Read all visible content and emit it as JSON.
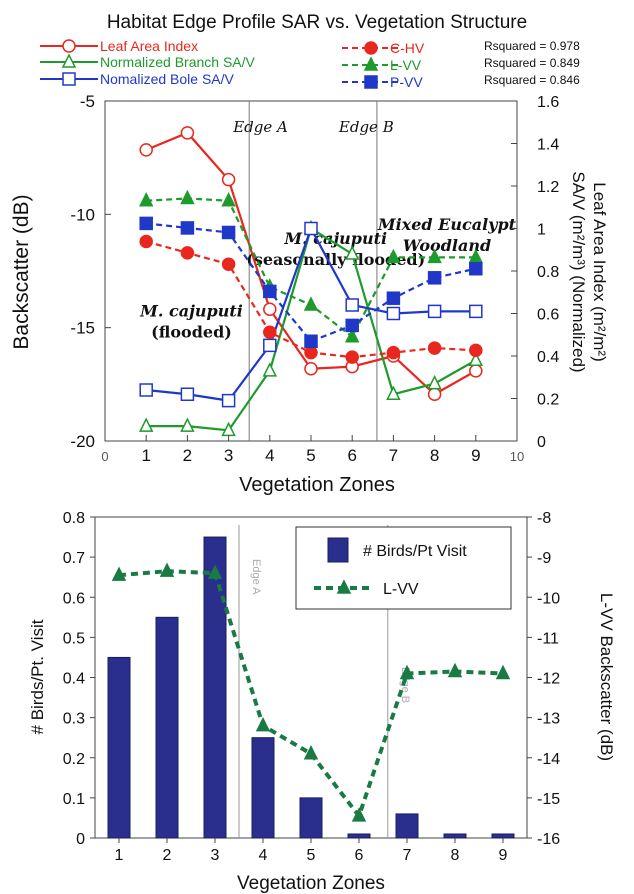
{
  "chart_data": [
    {
      "type": "line",
      "title": "Habitat Edge Profile SAR vs. Vegetation Structure",
      "xlabel": "Vegetation Zones",
      "ylabel_left": "Backscatter (dB)",
      "ylabel_right": "Leaf Area Index (m²/m²) SA/V (m²/m³) (Normalized)",
      "xlim": [
        0,
        10
      ],
      "ylim_left": [
        -20,
        -5
      ],
      "ylim_right": [
        0,
        1.6
      ],
      "x_ticks": [
        "0",
        "1",
        "2",
        "3",
        "4",
        "5",
        "6",
        "7",
        "8",
        "9",
        "10"
      ],
      "y_ticks_left": [
        "-5",
        "-10",
        "-15",
        "-20"
      ],
      "y_ticks_right": [
        "0",
        "0.2",
        "0.4",
        "0.6",
        "0.8",
        "1",
        "1.2",
        "1.4",
        "1.6"
      ],
      "x": [
        1,
        2,
        3,
        4,
        5,
        6,
        7,
        8,
        9
      ],
      "series": [
        {
          "name": "Leaf Area Index",
          "axis": "right",
          "color": "#e8271e",
          "style": "solid",
          "marker": "open-circle",
          "values": [
            1.37,
            1.45,
            1.23,
            0.62,
            0.34,
            0.35,
            0.4,
            0.22,
            0.33
          ]
        },
        {
          "name": "Normalized Branch SA/V",
          "axis": "right",
          "color": "#1f9a2c",
          "style": "solid",
          "marker": "open-triangle",
          "values": [
            0.07,
            0.07,
            0.05,
            0.33,
            1.0,
            0.88,
            0.22,
            0.27,
            0.38
          ]
        },
        {
          "name": "Nomalized Bole SA/V",
          "axis": "right",
          "color": "#2038c8",
          "style": "solid",
          "marker": "open-square",
          "values": [
            0.24,
            0.22,
            0.19,
            0.45,
            1.0,
            0.64,
            0.6,
            0.61,
            0.61
          ]
        },
        {
          "name": "C-HV",
          "axis": "left",
          "color": "#e8271e",
          "style": "dashed",
          "marker": "filled-circle",
          "values": [
            -11.2,
            -11.7,
            -12.2,
            -15.2,
            -16.1,
            -16.3,
            -16.1,
            -15.9,
            -16.0
          ]
        },
        {
          "name": "L-VV",
          "axis": "left",
          "color": "#1f9a2c",
          "style": "dashed",
          "marker": "filled-triangle",
          "values": [
            -9.4,
            -9.3,
            -9.4,
            -13.2,
            -14.0,
            -15.4,
            -11.9,
            -11.9,
            -11.9
          ]
        },
        {
          "name": "P-VV",
          "axis": "left",
          "color": "#2038c8",
          "style": "dashed",
          "marker": "filled-square",
          "values": [
            -10.4,
            -10.6,
            -10.8,
            -13.4,
            -15.6,
            -14.9,
            -13.7,
            -12.8,
            -12.4
          ]
        }
      ],
      "rsquared": [
        "Rsquared = 0.978",
        "Rsquared = 0.849",
        "Rsquared = 0.846"
      ],
      "edges": [
        {
          "label": "Edge A",
          "x": 3.5
        },
        {
          "label": "Edge B",
          "x": 6.6
        }
      ],
      "annotations": [
        {
          "lines": [
            "M. cajuputi",
            "(seasonally flooded)"
          ],
          "x": 5.6,
          "y": -11.3
        },
        {
          "lines": [
            "Mixed Eucalypt",
            "Woodland"
          ],
          "x": 8.3,
          "y": -10.7
        },
        {
          "lines": [
            "M. cajuputi",
            "(flooded)"
          ],
          "x": 2.1,
          "y": -14.5
        }
      ]
    },
    {
      "type": "bar",
      "xlabel": "Vegetation Zones",
      "ylabel_left": "# Birds/Pt. Visit",
      "ylabel_right": "L-VV Backscatter (dB)",
      "categories": [
        "1",
        "2",
        "3",
        "4",
        "5",
        "6",
        "7",
        "8",
        "9"
      ],
      "ylim_left": [
        0,
        0.8
      ],
      "ylim_right": [
        -16,
        -8
      ],
      "y_ticks_left": [
        "0",
        "0.1",
        "0.2",
        "0.3",
        "0.4",
        "0.5",
        "0.6",
        "0.7",
        "0.8"
      ],
      "y_ticks_right": [
        "-8",
        "-9",
        "-10",
        "-11",
        "-12",
        "-13",
        "-14",
        "-15",
        "-16"
      ],
      "series": [
        {
          "name": "# Birds/Pt Visit",
          "axis": "left",
          "color": "#2a2e8c",
          "values": [
            0.45,
            0.55,
            0.75,
            0.25,
            0.1,
            0.01,
            0.06,
            0.01,
            0.01
          ]
        },
        {
          "name": "L-VV",
          "axis": "right",
          "color": "#1a7a44",
          "style": "dashed",
          "marker": "filled-triangle",
          "values": [
            -9.45,
            -9.35,
            -9.4,
            -13.2,
            -13.9,
            -15.45,
            -11.9,
            -11.85,
            -11.9
          ]
        }
      ],
      "edges": [
        {
          "label": "Edge A",
          "x": 3.5
        },
        {
          "label": "Edge B",
          "x": 6.6
        }
      ]
    }
  ]
}
